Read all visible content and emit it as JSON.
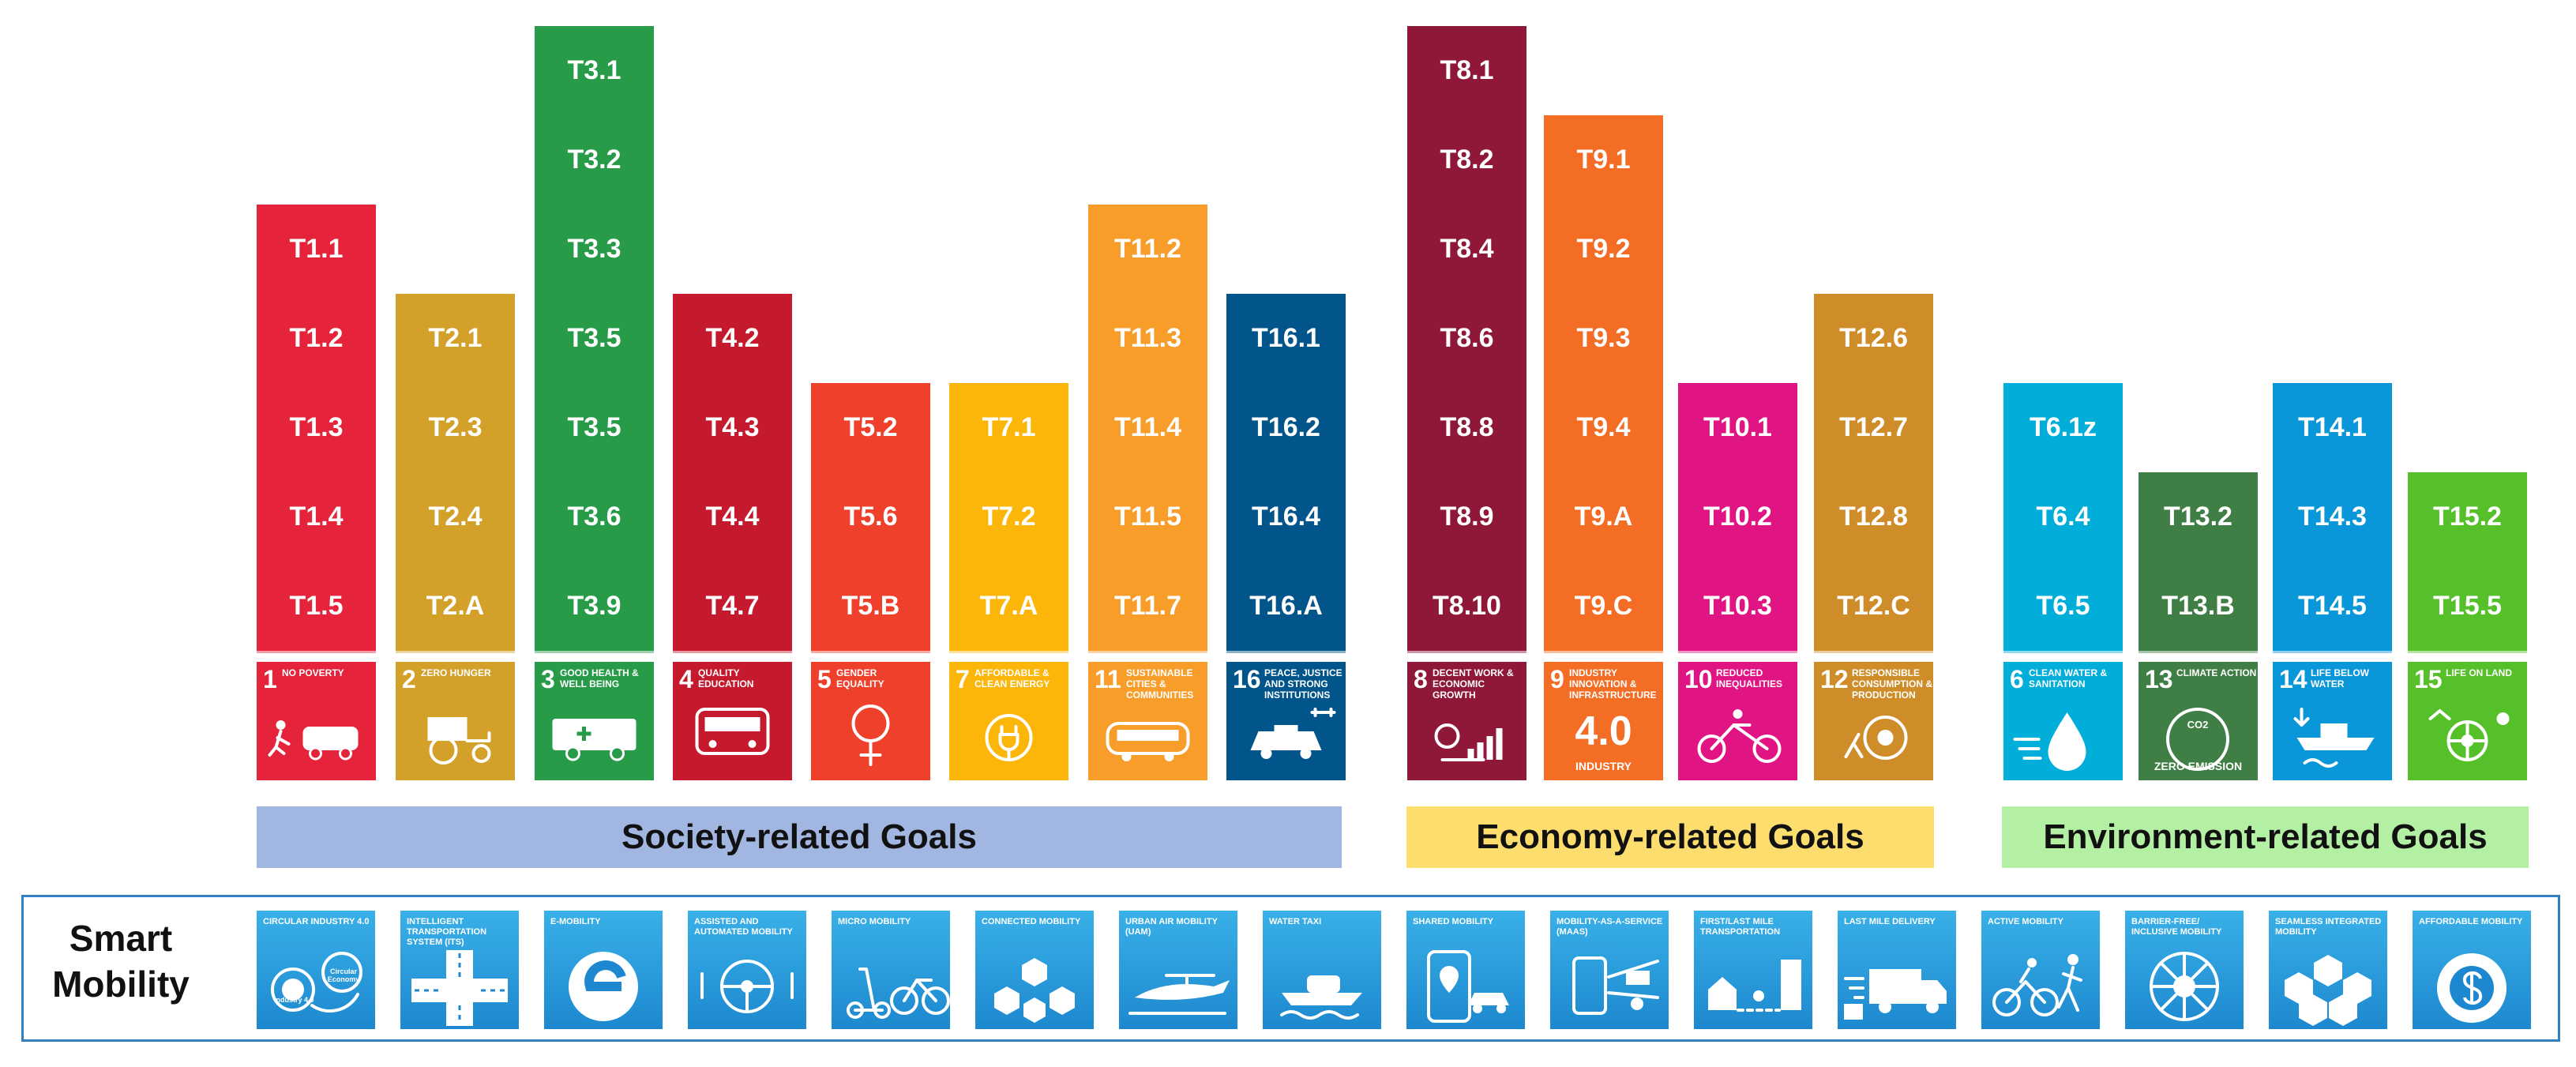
{
  "goals": [
    {
      "id": "sdg1",
      "number": "1",
      "label": "No Poverty",
      "color": "#e5243b",
      "icon": "running-person-car-icon",
      "targets": [
        "T1.1",
        "T1.2",
        "T1.3",
        "T1.4",
        "T1.5"
      ]
    },
    {
      "id": "sdg2",
      "number": "2",
      "label": "Zero Hunger",
      "color": "#d3a029",
      "icon": "tractor-icon",
      "targets": [
        "T2.1",
        "T2.3",
        "T2.4",
        "T2.A"
      ]
    },
    {
      "id": "sdg3",
      "number": "3",
      "label": "Good Health & Well Being",
      "color": "#279b48",
      "icon": "ambulance-icon",
      "targets": [
        "T3.1",
        "T3.2",
        "T3.3",
        "T3.5",
        "T3.5",
        "T3.6",
        "T3.9"
      ]
    },
    {
      "id": "sdg4",
      "number": "4",
      "label": "Quality Education",
      "color": "#c5192d",
      "icon": "school-bus-icon",
      "targets": [
        "T4.2",
        "T4.3",
        "T4.4",
        "T4.7"
      ]
    },
    {
      "id": "sdg5",
      "number": "5",
      "label": "Gender Equality",
      "color": "#ef402c",
      "icon": "gender-symbol-icon",
      "targets": [
        "T5.2",
        "T5.6",
        "T5.B"
      ]
    },
    {
      "id": "sdg7",
      "number": "7",
      "label": "Affordable & Clean Energy",
      "color": "#fcb60a",
      "icon": "ev-plug-icon",
      "targets": [
        "T7.1",
        "T7.2",
        "T7.A"
      ]
    },
    {
      "id": "sdg11",
      "number": "11",
      "label": "Sustainable Cities & Communities",
      "color": "#f89d2a",
      "icon": "autonomous-shuttle-icon",
      "targets": [
        "T11.2",
        "T11.3",
        "T11.4",
        "T11.5",
        "T11.7"
      ]
    },
    {
      "id": "sdg16",
      "number": "16",
      "label": "Peace, Justice and Strong Institutions",
      "color": "#02558b",
      "icon": "police-car-drone-icon",
      "targets": [
        "T16.1",
        "T16.2",
        "T16.4",
        "T16.A"
      ]
    },
    {
      "id": "sdg8",
      "number": "8",
      "label": "Decent Work & Economic Growth",
      "color": "#8f1838",
      "icon": "growth-chart-icon",
      "targets": [
        "T8.1",
        "T8.2",
        "T8.4",
        "T8.6",
        "T8.8",
        "T8.9",
        "T8.10"
      ]
    },
    {
      "id": "sdg9",
      "number": "9",
      "label": "Industry Innovation & Infrastructure",
      "color": "#f36d25",
      "icon": "industry-4-0-icon",
      "sub": "INDUSTRY",
      "big": "4.0",
      "targets": [
        "T9.1",
        "T9.2",
        "T9.3",
        "T9.4",
        "T9.A",
        "T9.C"
      ]
    },
    {
      "id": "sdg10",
      "number": "10",
      "label": "Reduced Inequalities",
      "color": "#e11484",
      "icon": "wheelchair-bike-icon",
      "targets": [
        "T10.1",
        "T10.2",
        "T10.3"
      ]
    },
    {
      "id": "sdg12",
      "number": "12",
      "label": "Responsible Consumption & Production",
      "color": "#cf8d2a",
      "icon": "recycling-gear-icon",
      "targets": [
        "T12.6",
        "T12.7",
        "T12.8",
        "T12.C"
      ]
    },
    {
      "id": "sdg6",
      "number": "6",
      "label": "Clean Water & Sanitation",
      "color": "#00aed9",
      "icon": "water-drop-icon",
      "targets": [
        "T6.1z",
        "T6.4",
        "T6.5"
      ]
    },
    {
      "id": "sdg13",
      "number": "13",
      "label": "Climate Action",
      "color": "#3f7e44",
      "icon": "zero-emission-icon",
      "sub": "ZERO EMISSION",
      "co2": "CO2",
      "targets": [
        "T13.2",
        "T13.B"
      ]
    },
    {
      "id": "sdg14",
      "number": "14",
      "label": "Life Below Water",
      "color": "#0a97d9",
      "icon": "ship-fish-icon",
      "targets": [
        "T14.1",
        "T14.3",
        "T14.5"
      ]
    },
    {
      "id": "sdg15",
      "number": "15",
      "label": "Life on Land",
      "color": "#56c02b",
      "icon": "wildlife-wheel-icon",
      "targets": [
        "T15.2",
        "T15.5"
      ]
    }
  ],
  "groups": [
    {
      "id": "society",
      "label": "Society-related Goals",
      "color": "#a2b6e2"
    },
    {
      "id": "economy",
      "label": "Economy-related Goals",
      "color": "#fcdd6d"
    },
    {
      "id": "environment",
      "label": "Environment-related Goals",
      "color": "#b4f0a4"
    }
  ],
  "smart_mobility": {
    "title_line1": "Smart",
    "title_line2": "Mobility",
    "tiles": [
      {
        "label": "Circular Industry 4.0",
        "icon": "circular-economy-gears-icon",
        "extra": [
          "Industry 4.0",
          "Circular Economy"
        ]
      },
      {
        "label": "Intelligent Transportation System (ITS)",
        "icon": "intersection-icon"
      },
      {
        "label": "E-Mobility",
        "icon": "e-mobility-icon"
      },
      {
        "label": "Assisted and Automated Mobility",
        "icon": "steering-wheel-hands-icon"
      },
      {
        "label": "Micro Mobility",
        "icon": "scooter-bicycle-icon"
      },
      {
        "label": "Connected Mobility",
        "icon": "connected-vehicles-icon"
      },
      {
        "label": "Urban Air Mobility (UAM)",
        "icon": "air-taxi-icon"
      },
      {
        "label": "Water Taxi",
        "icon": "water-taxi-icon"
      },
      {
        "label": "Shared Mobility",
        "icon": "phone-pin-car-icon"
      },
      {
        "label": "Mobility-as-a-Service (MaaS)",
        "icon": "maas-phone-icon"
      },
      {
        "label": "First/Last Mile Transportation",
        "icon": "first-last-mile-icon"
      },
      {
        "label": "Last Mile Delivery",
        "icon": "delivery-truck-icon"
      },
      {
        "label": "Active Mobility",
        "icon": "cyclist-runner-icon"
      },
      {
        "label": "Barrier-Free/ Inclusive Mobility",
        "icon": "inclusive-wheel-icon"
      },
      {
        "label": "Seamless Integrated Mobility",
        "icon": "integrated-hexagons-icon"
      },
      {
        "label": "Affordable Mobility",
        "icon": "dollar-tire-icon"
      }
    ]
  }
}
